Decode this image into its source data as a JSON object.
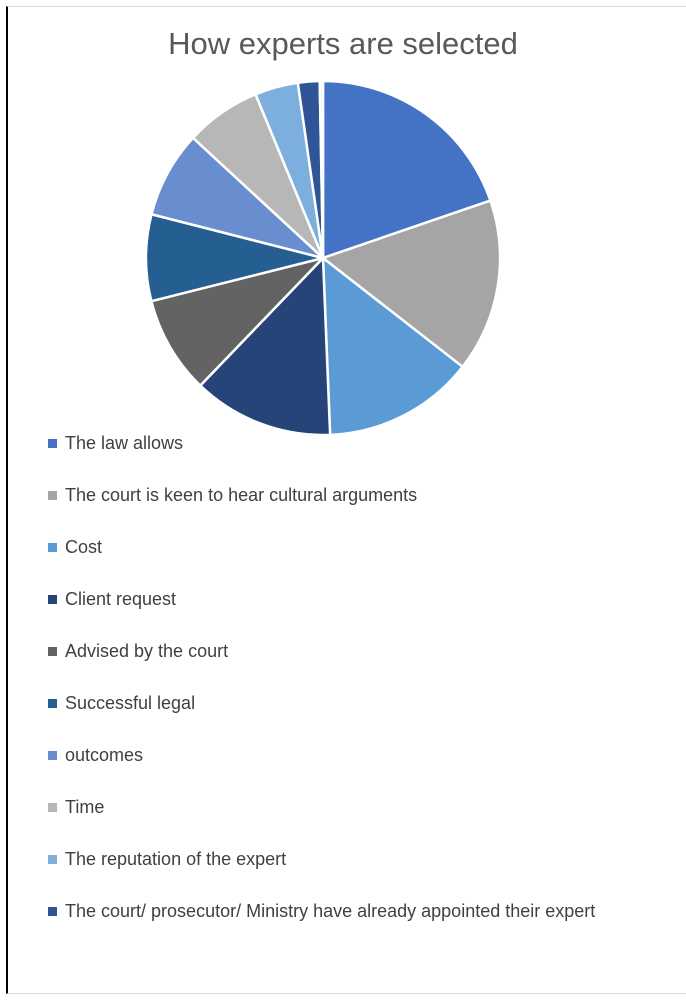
{
  "chart_data": {
    "type": "pie",
    "title": "How experts are selected",
    "legend_position": "bottom",
    "series": [
      {
        "slices": [
          {
            "label": "The law allows",
            "value": 20,
            "color": "#4472C4"
          },
          {
            "label": "The court is keen to hear cultural arguments",
            "value": 16,
            "color": "#A5A5A5"
          },
          {
            "label": "Cost",
            "value": 14,
            "color": "#5B9BD5"
          },
          {
            "label": "Client request",
            "value": 13,
            "color": "#264478"
          },
          {
            "label": "Advised by the court",
            "value": 9,
            "color": "#636363"
          },
          {
            "label": "Successful legal",
            "value": 8,
            "color": "#255E91"
          },
          {
            "label": "outcomes",
            "value": 8,
            "color": "#698ED0"
          },
          {
            "label": "Time",
            "value": 7,
            "color": "#B7B7B7"
          },
          {
            "label": "The reputation of the expert",
            "value": 4,
            "color": "#7CAFDD"
          },
          {
            "label": "The court/ prosecutor/ Ministry have already appointed their expert",
            "value": 2,
            "color": "#2F5597"
          },
          {
            "label": "",
            "value": 0.3,
            "color": "#F2F2F2"
          }
        ]
      }
    ]
  }
}
